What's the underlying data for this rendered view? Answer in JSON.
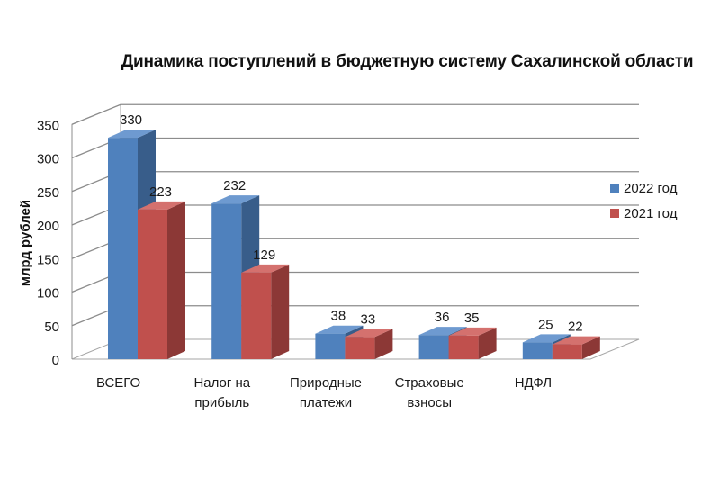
{
  "chart_data": {
    "type": "bar",
    "title": "Динамика поступлений в бюджетную систему Сахалинской области",
    "ylabel": "млрд рублей",
    "xlabel": "",
    "ylim": [
      0,
      350
    ],
    "yticks": [
      0,
      50,
      100,
      150,
      200,
      250,
      300,
      350
    ],
    "categories": [
      [
        "ВСЕГО"
      ],
      [
        "Налог на",
        "прибыль"
      ],
      [
        "Природные",
        "платежи"
      ],
      [
        "Страховые",
        "взносы"
      ],
      [
        "НДФЛ"
      ]
    ],
    "series": [
      {
        "name": "2022 год",
        "values": [
          330,
          232,
          38,
          36,
          25
        ],
        "color": "#4F81BD",
        "side": "#385D8A",
        "top": "#6E9AD0"
      },
      {
        "name": "2021 год",
        "values": [
          223,
          129,
          33,
          35,
          22
        ],
        "color": "#C0504D",
        "side": "#8C3836",
        "top": "#D4716E"
      }
    ],
    "grid": true,
    "legend": "right",
    "style": "3d-clustered-column"
  }
}
